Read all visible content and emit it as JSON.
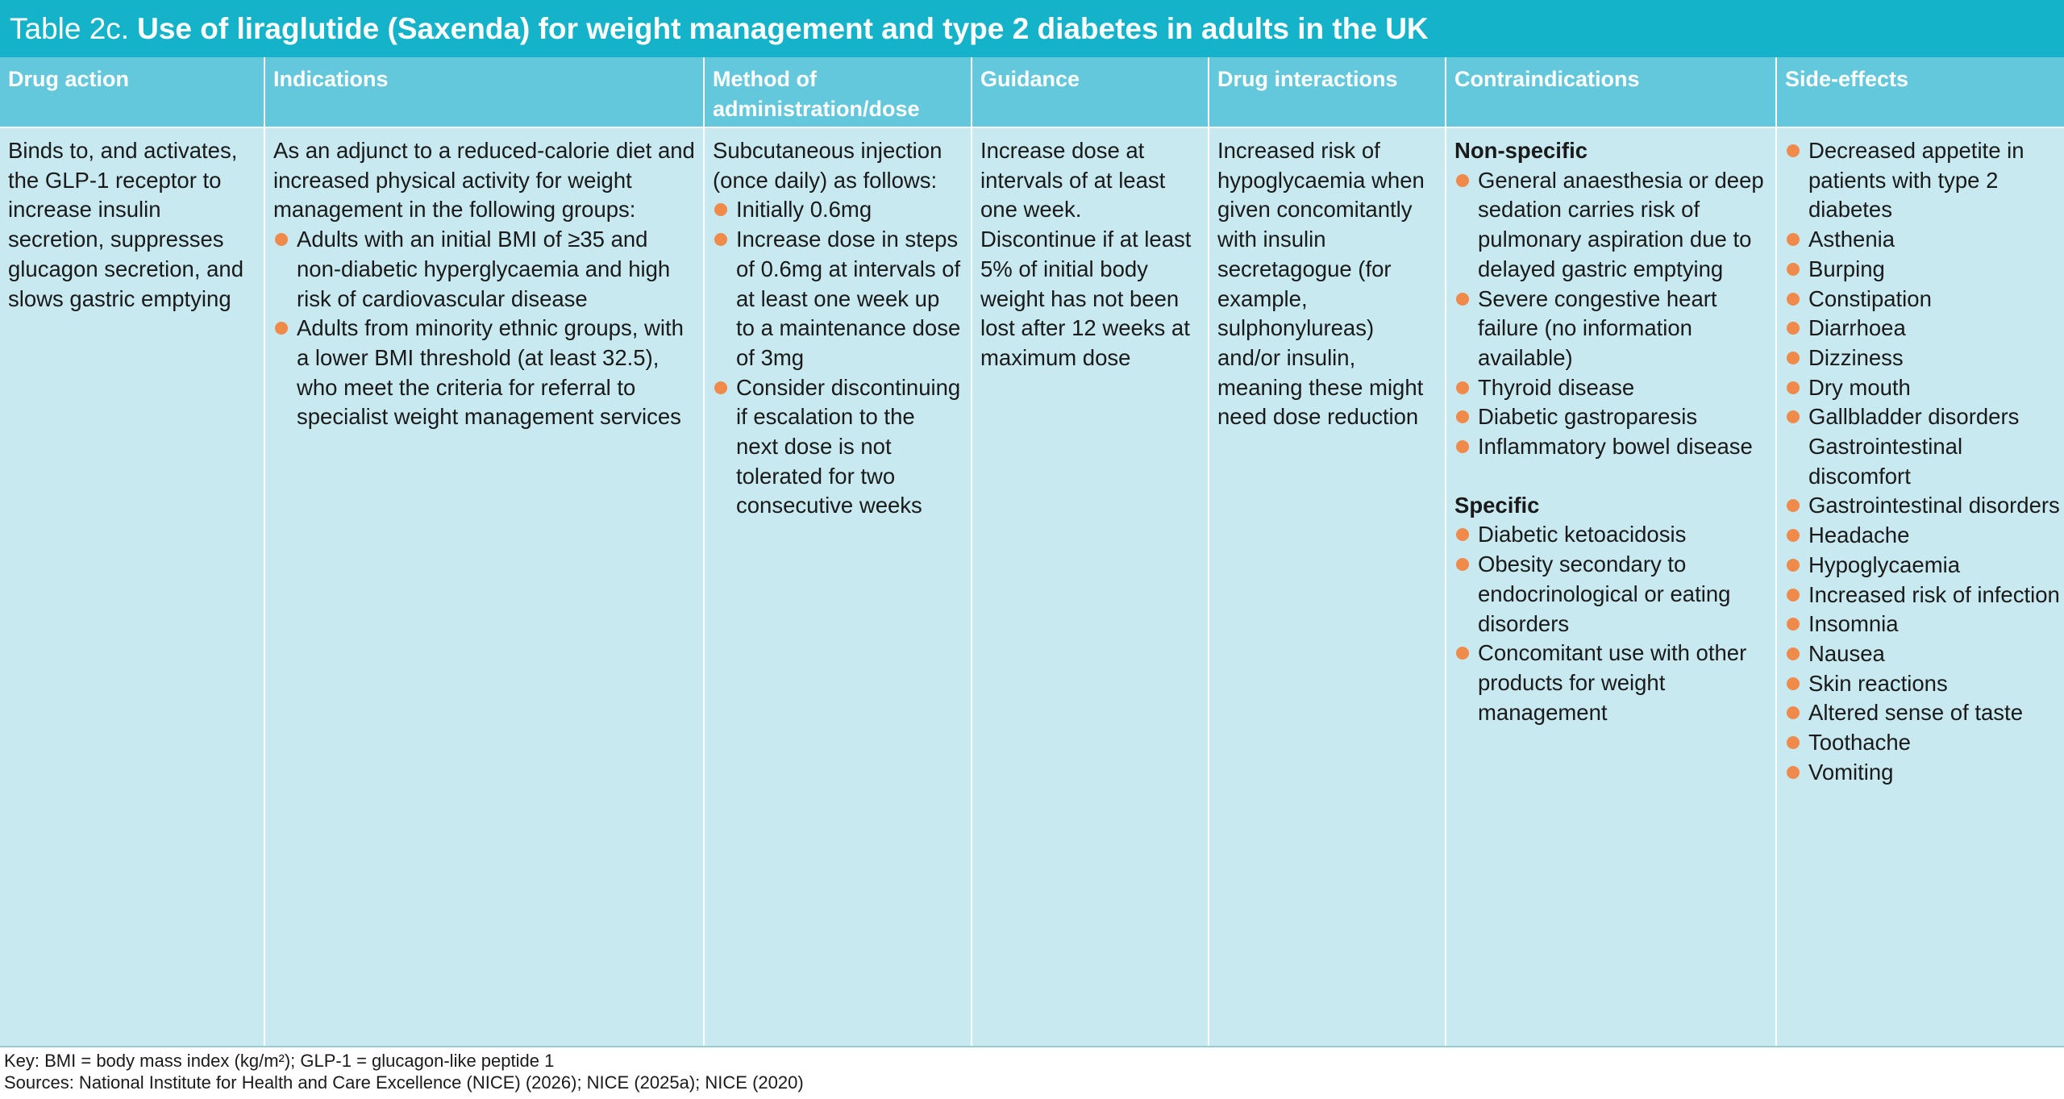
{
  "title": {
    "prefix": "Table 2c.",
    "main": "Use of liraglutide (Saxenda) for weight management and type 2 diabetes in adults in the UK"
  },
  "columns": [
    "Drug action",
    "Indications",
    "Method of administration/dose",
    "Guidance",
    "Drug interactions",
    "Contraindications",
    "Side-effects"
  ],
  "drug_action": "Binds to, and activates, the GLP-1 receptor to increase insulin secretion, suppresses glucagon secretion, and slows gastric emptying",
  "indications": {
    "intro": "As an adjunct to a reduced-calorie diet and increased physical activity for weight management in the following groups:",
    "items": [
      "Adults with an initial BMI of ≥35 and non-diabetic hyperglycaemia and high risk of cardiovascular disease",
      "Adults from minority ethnic groups, with a lower BMI threshold (at least 32.5), who meet the criteria for referral to specialist weight management services"
    ]
  },
  "method": {
    "intro": "Subcutaneous injection (once daily) as follows:",
    "items": [
      "Initially 0.6mg",
      "Increase dose in steps of 0.6mg at intervals of at least one week up to a maintenance dose of 3mg",
      "Consider discontinuing if escalation to the next dose is not tolerated for two consecutive weeks"
    ]
  },
  "guidance": "Increase dose at intervals of at least one week. Discontinue if at least 5% of initial body weight has not been lost after 12 weeks at maximum dose",
  "drug_interactions": "Increased risk of hypoglycaemia when given concomitantly with insulin secretagogue (for example, sulphonylureas) and/or insulin, meaning these might need dose reduction",
  "contraindications": {
    "nonspecific_heading": "Non-specific",
    "nonspecific": [
      "General anaesthesia or deep sedation carries risk of pulmonary aspiration due to delayed gastric emptying",
      "Severe congestive heart failure (no information available)",
      "Thyroid disease",
      "Diabetic gastroparesis",
      "Inflammatory bowel disease"
    ],
    "specific_heading": "Specific",
    "specific": [
      "Diabetic ketoacidosis",
      "Obesity secondary to endocrinological or eating disorders",
      "Concomitant use with other products for weight management"
    ]
  },
  "side_effects": [
    "Decreased appetite in patients with type 2 diabetes",
    "Asthenia",
    "Burping",
    "Constipation",
    "Diarrhoea",
    "Dizziness",
    "Dry mouth",
    "Gallbladder disorders Gastrointestinal discomfort",
    "Gastrointestinal disorders",
    "Headache",
    "Hypoglycaemia",
    "Increased risk of infection",
    "Insomnia",
    "Nausea",
    "Skin reactions",
    "Altered sense of taste",
    "Toothache",
    "Vomiting"
  ],
  "footer": {
    "key": "Key: BMI = body mass index (kg/m²); GLP-1 = glucagon-like peptide 1",
    "sources": "Sources: National Institute for Health and Care Excellence (NICE) (2026); NICE (2025a); NICE (2020)"
  },
  "colors": {
    "title_bg": "#14b3c9",
    "header_bg": "#64c8dc",
    "cell_bg": "#c7e9ef",
    "bullet": "#f08a4b"
  }
}
